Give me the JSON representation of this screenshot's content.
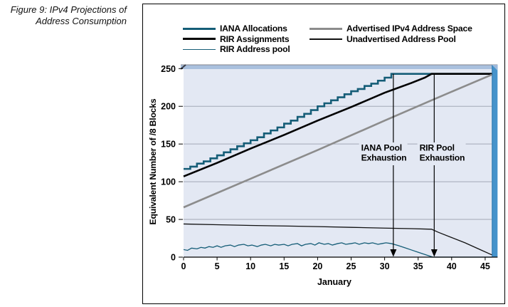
{
  "caption": {
    "line1": "Figure 9: IPv4 Projections of",
    "line2": "Address Consumption"
  },
  "legend": {
    "items": [
      {
        "label": "IANA Allocations",
        "color": "#155d77",
        "thickness": 3
      },
      {
        "label": "RIR Assignments",
        "color": "#000000",
        "thickness": 3
      },
      {
        "label": "RIR Address pool",
        "color": "#155d77",
        "thickness": 1.5
      },
      {
        "label": "Advertised IPv4 Address Space",
        "color": "#8c8c8c",
        "thickness": 3
      },
      {
        "label": "Unadvertised Address Pool",
        "color": "#111111",
        "thickness": 1.5
      }
    ]
  },
  "colors": {
    "plot_bg": "#e3e8f3",
    "band": "#a9c0de",
    "band_edge": "#84858c",
    "band_bevel": "#3a3f4a",
    "wall": "#4693cb",
    "wall_shadow": "#2d77ac",
    "wall_bevel": "#9fb9da",
    "grid": "#a3a9b6",
    "axis": "#000000",
    "teal": "#155d77",
    "gray": "#8c8c8c"
  },
  "chart_data": {
    "type": "line",
    "title": "",
    "xlabel": "January",
    "ylabel": "Equivalent Number of /8 Blocks",
    "xlim": [
      0,
      46
    ],
    "ylim": [
      0,
      250
    ],
    "x_ticks": [
      0,
      5,
      10,
      15,
      20,
      25,
      30,
      35,
      40,
      45
    ],
    "y_ticks": [
      0,
      50,
      100,
      150,
      200,
      250
    ],
    "y_gridlines": [
      50,
      100,
      150,
      200
    ],
    "grid": "horizontal",
    "legend_position": "top",
    "series": [
      {
        "name": "IANA Allocations",
        "color": "#155d77",
        "width": 2.6,
        "interpolation": "step-after",
        "points": [
          [
            0,
            117
          ],
          [
            1,
            120
          ],
          [
            2,
            124
          ],
          [
            3,
            127
          ],
          [
            4,
            131
          ],
          [
            5,
            135
          ],
          [
            6,
            139
          ],
          [
            7,
            143
          ],
          [
            8,
            147
          ],
          [
            9,
            151
          ],
          [
            10,
            155
          ],
          [
            11,
            159
          ],
          [
            12,
            164
          ],
          [
            13,
            168
          ],
          [
            14,
            172
          ],
          [
            15,
            177
          ],
          [
            16,
            181
          ],
          [
            17,
            186
          ],
          [
            18,
            190
          ],
          [
            19,
            195
          ],
          [
            20,
            200
          ],
          [
            21,
            204
          ],
          [
            22,
            208
          ],
          [
            23,
            212
          ],
          [
            24,
            216
          ],
          [
            25,
            220
          ],
          [
            26,
            223
          ],
          [
            27,
            227
          ],
          [
            28,
            230
          ],
          [
            29,
            234
          ],
          [
            30,
            238
          ],
          [
            31,
            243
          ],
          [
            46,
            243
          ]
        ]
      },
      {
        "name": "RIR Assignments",
        "color": "#000000",
        "width": 2.6,
        "interpolation": "linear",
        "points": [
          [
            0,
            107
          ],
          [
            5,
            125
          ],
          [
            10,
            144
          ],
          [
            15,
            162
          ],
          [
            20,
            181
          ],
          [
            25,
            199
          ],
          [
            30,
            218
          ],
          [
            34,
            231
          ],
          [
            36,
            238
          ],
          [
            37,
            243
          ],
          [
            46,
            243
          ]
        ]
      },
      {
        "name": "Advertised IPv4 Address Space",
        "color": "#8c8c8c",
        "width": 2.6,
        "interpolation": "linear",
        "points": [
          [
            0,
            66
          ],
          [
            10,
            104
          ],
          [
            20,
            142
          ],
          [
            30,
            181
          ],
          [
            37,
            208
          ],
          [
            46,
            242
          ]
        ]
      },
      {
        "name": "Unadvertised Address Pool",
        "color": "#111111",
        "width": 1.3,
        "interpolation": "linear",
        "points": [
          [
            0,
            44
          ],
          [
            5,
            43
          ],
          [
            10,
            42
          ],
          [
            15,
            41.3
          ],
          [
            20,
            40.5
          ],
          [
            25,
            39.5
          ],
          [
            30,
            38.5
          ],
          [
            34,
            37.8
          ],
          [
            37,
            37
          ],
          [
            38,
            33
          ],
          [
            40,
            26
          ],
          [
            42,
            19
          ],
          [
            44,
            11
          ],
          [
            46,
            3
          ]
        ]
      },
      {
        "name": "RIR Address pool",
        "color": "#155d77",
        "width": 1.3,
        "interpolation": "linear",
        "points": [
          [
            0,
            10
          ],
          [
            0.6,
            9
          ],
          [
            1.2,
            12
          ],
          [
            2,
            11
          ],
          [
            2.6,
            13
          ],
          [
            3.2,
            12
          ],
          [
            3.8,
            14
          ],
          [
            4.4,
            13
          ],
          [
            5,
            15
          ],
          [
            5.6,
            13
          ],
          [
            6.2,
            15
          ],
          [
            7,
            16
          ],
          [
            7.6,
            14
          ],
          [
            8.2,
            16
          ],
          [
            9,
            17
          ],
          [
            9.6,
            15
          ],
          [
            10.2,
            16
          ],
          [
            11,
            14
          ],
          [
            11.6,
            16
          ],
          [
            12.2,
            17
          ],
          [
            13,
            15
          ],
          [
            13.6,
            17
          ],
          [
            14.2,
            16
          ],
          [
            15,
            17
          ],
          [
            15.6,
            15
          ],
          [
            16.2,
            17
          ],
          [
            17,
            18
          ],
          [
            17.6,
            15
          ],
          [
            18.2,
            17
          ],
          [
            19,
            18
          ],
          [
            19.6,
            16
          ],
          [
            20.2,
            19
          ],
          [
            21,
            17
          ],
          [
            21.6,
            18
          ],
          [
            22.2,
            16
          ],
          [
            23,
            18
          ],
          [
            23.6,
            19
          ],
          [
            24.2,
            17
          ],
          [
            25,
            18
          ],
          [
            25.6,
            19
          ],
          [
            26.2,
            17
          ],
          [
            27,
            19
          ],
          [
            27.6,
            18
          ],
          [
            28.2,
            19
          ],
          [
            29,
            17
          ],
          [
            29.6,
            18
          ],
          [
            30.2,
            19
          ],
          [
            31,
            18
          ],
          [
            32,
            15.5
          ],
          [
            33,
            12.5
          ],
          [
            34,
            9.5
          ],
          [
            35,
            6.5
          ],
          [
            36,
            3.5
          ],
          [
            37.2,
            0
          ],
          [
            46,
            0
          ]
        ]
      }
    ],
    "annotations": [
      {
        "x": 31.3,
        "y_top": 243,
        "lines": [
          "IANA Pool",
          "Exhaustion"
        ],
        "label_anchor_x": 26.5
      },
      {
        "x": 37.4,
        "y_top": 243,
        "lines": [
          "RIR Pool",
          "Exhaustion"
        ],
        "label_anchor_x": 35.2
      }
    ]
  }
}
